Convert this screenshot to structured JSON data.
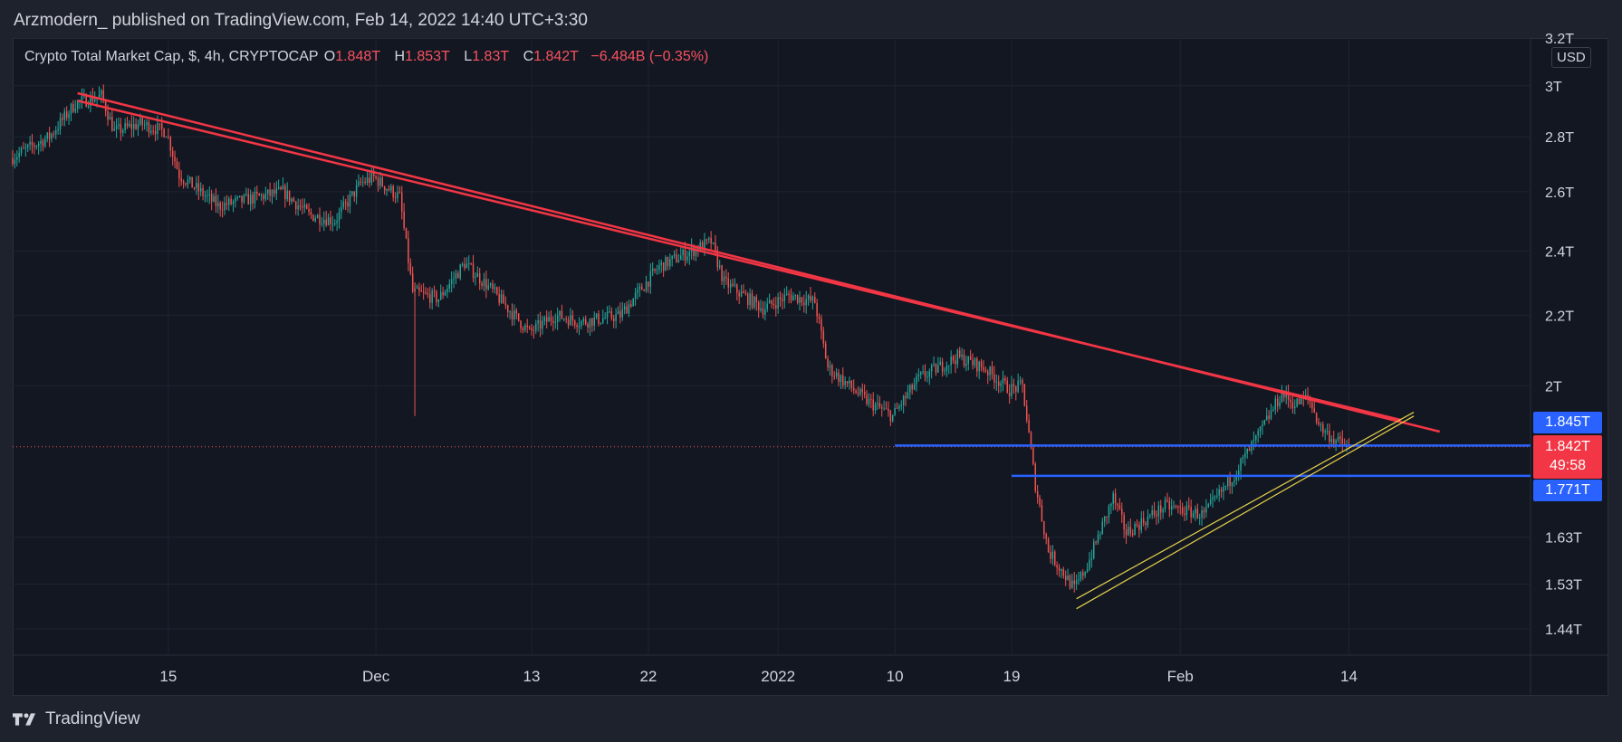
{
  "header": {
    "publish_text": "Arzmodern_ published on TradingView.com, Feb 14, 2022 14:40 UTC+3:30"
  },
  "legend": {
    "symbol": "Crypto Total Market Cap, $, 4h, CRYPTOCAP",
    "o_label": "O",
    "o_value": "1.848T",
    "h_label": "H",
    "h_value": "1.853T",
    "l_label": "L",
    "l_value": "1.83T",
    "c_label": "C",
    "c_value": "1.842T",
    "change": "−6.484B (−0.35%)"
  },
  "axis": {
    "currency": "USD"
  },
  "price_tags": {
    "upper": "1.845T",
    "current": "1.842T",
    "countdown": "49:58",
    "lower": "1.771T"
  },
  "footer": {
    "brand": "TradingView"
  },
  "colors": {
    "background": "#131722",
    "up": "#26a69a",
    "down": "#ef5350",
    "trendline": "#f23645",
    "support": "#2962ff",
    "channel": "#e6d24a"
  },
  "chart_data": {
    "type": "candlestick",
    "title": "Crypto Total Market Cap, $, 4h, CRYPTOCAP",
    "scale": "log",
    "y_ticks": [
      "3.2T",
      "3T",
      "2.8T",
      "2.6T",
      "2.4T",
      "2.2T",
      "2T",
      "1.63T",
      "1.53T",
      "1.44T"
    ],
    "y_tick_values": [
      3.2,
      3.0,
      2.8,
      2.6,
      2.4,
      2.2,
      2.0,
      1.63,
      1.53,
      1.44
    ],
    "x_ticks": [
      "15",
      "Dec",
      "13",
      "22",
      "2022",
      "10",
      "19",
      "Feb",
      "14"
    ],
    "x_tick_dates": [
      "2021-11-15",
      "2021-12-01",
      "2021-12-13",
      "2021-12-22",
      "2022-01-01",
      "2022-01-10",
      "2022-01-19",
      "2022-02-01",
      "2022-02-14"
    ],
    "x_range": [
      "2021-11-03",
      "2022-02-28"
    ],
    "y_range": [
      1.39,
      3.2
    ],
    "price_path": [
      [
        "2021-11-03",
        2.72
      ],
      [
        "2021-11-06",
        2.8
      ],
      [
        "2021-11-08",
        2.93
      ],
      [
        "2021-11-10",
        2.96
      ],
      [
        "2021-11-11",
        2.82
      ],
      [
        "2021-11-13",
        2.85
      ],
      [
        "2021-11-15",
        2.82
      ],
      [
        "2021-11-16",
        2.66
      ],
      [
        "2021-11-19",
        2.55
      ],
      [
        "2021-11-22",
        2.58
      ],
      [
        "2021-11-24",
        2.6
      ],
      [
        "2021-11-26",
        2.52
      ],
      [
        "2021-11-28",
        2.5
      ],
      [
        "2021-11-30",
        2.63
      ],
      [
        "2021-12-01",
        2.65
      ],
      [
        "2021-12-03",
        2.58
      ],
      [
        "2021-12-04",
        2.27
      ],
      [
        "2021-12-06",
        2.25
      ],
      [
        "2021-12-08",
        2.36
      ],
      [
        "2021-12-10",
        2.28
      ],
      [
        "2021-12-13",
        2.15
      ],
      [
        "2021-12-15",
        2.2
      ],
      [
        "2021-12-17",
        2.18
      ],
      [
        "2021-12-20",
        2.2
      ],
      [
        "2021-12-23",
        2.35
      ],
      [
        "2021-12-27",
        2.43
      ],
      [
        "2021-12-28",
        2.3
      ],
      [
        "2021-12-31",
        2.22
      ],
      [
        "2022-01-02",
        2.26
      ],
      [
        "2022-01-04",
        2.24
      ],
      [
        "2022-01-05",
        2.05
      ],
      [
        "2022-01-08",
        1.96
      ],
      [
        "2022-01-10",
        1.92
      ],
      [
        "2022-01-12",
        2.02
      ],
      [
        "2022-01-15",
        2.08
      ],
      [
        "2022-01-17",
        2.05
      ],
      [
        "2022-01-19",
        1.99
      ],
      [
        "2022-01-20",
        2.0
      ],
      [
        "2022-01-21",
        1.75
      ],
      [
        "2022-01-22",
        1.6
      ],
      [
        "2022-01-24",
        1.52
      ],
      [
        "2022-01-25",
        1.57
      ],
      [
        "2022-01-27",
        1.72
      ],
      [
        "2022-01-28",
        1.64
      ],
      [
        "2022-01-31",
        1.7
      ],
      [
        "2022-02-03",
        1.68
      ],
      [
        "2022-02-05",
        1.76
      ],
      [
        "2022-02-07",
        1.86
      ],
      [
        "2022-02-09",
        1.98
      ],
      [
        "2022-02-10",
        1.95
      ],
      [
        "2022-02-11",
        1.97
      ],
      [
        "2022-02-12",
        1.89
      ],
      [
        "2022-02-13",
        1.86
      ],
      [
        "2022-02-14",
        1.842
      ]
    ],
    "current_price": 1.842,
    "levels": [
      {
        "price": 1.845,
        "from": "2022-01-10",
        "color": "#2962ff"
      },
      {
        "price": 1.771,
        "from": "2022-01-19",
        "color": "#2962ff"
      }
    ],
    "trendlines": [
      {
        "color": "#f23645",
        "from": [
          "2021-11-08",
          2.97
        ],
        "to": [
          "2022-02-21",
          1.88
        ]
      },
      {
        "color": "#f23645",
        "from": [
          "2021-11-08",
          2.94
        ],
        "to": [
          "2022-02-18",
          1.91
        ]
      }
    ],
    "channel": [
      {
        "color": "#e6d24a",
        "from": [
          "2022-01-24",
          1.48
        ],
        "to": [
          "2022-02-19",
          1.92
        ]
      },
      {
        "color": "#e6d24a",
        "from": [
          "2022-01-24",
          1.5
        ],
        "to": [
          "2022-02-19",
          1.93
        ]
      }
    ]
  }
}
